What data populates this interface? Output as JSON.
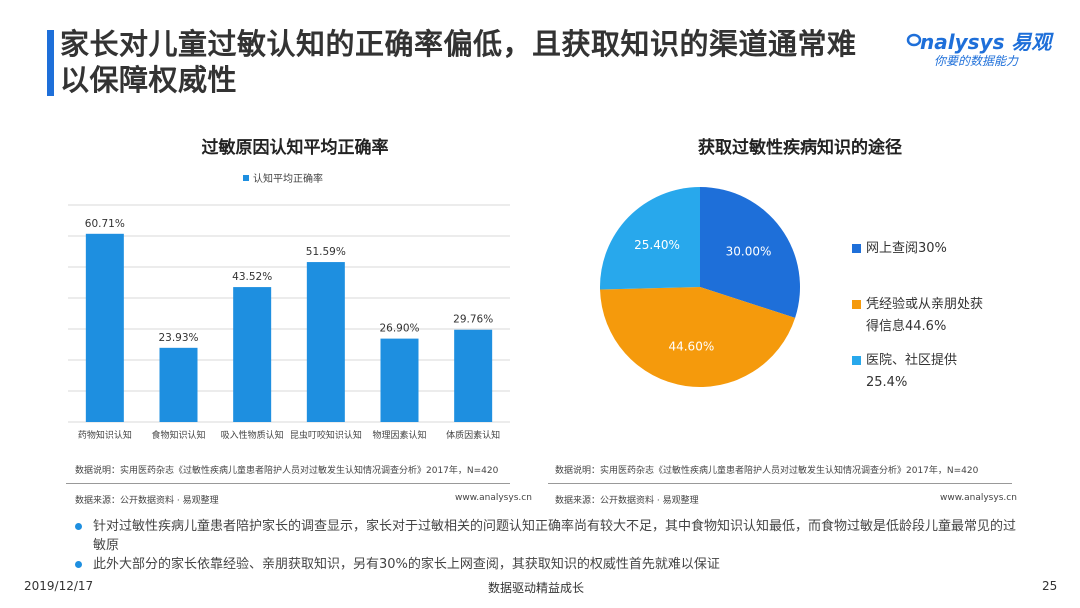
{
  "header": {
    "title_line1": "家长对儿童过敏认知的正确率偏低，且获取知识的渠道通常难",
    "title_line2": "以保障权威性",
    "logo_main": "nalysys 易观",
    "logo_sub": "你要的数据能力",
    "accent_color": "#1e6fd9"
  },
  "chart_data": [
    {
      "type": "bar",
      "title": "过敏原因认知平均正确率",
      "legend": "认知平均正确率",
      "categories": [
        "药物知识认知",
        "食物知识认知",
        "吸入性物质认知",
        "昆虫叮咬知识认知",
        "物理因素认知",
        "体质因素认知"
      ],
      "series": [
        {
          "name": "认知平均正确率",
          "values": [
            60.71,
            23.93,
            43.52,
            51.59,
            26.9,
            29.76
          ]
        }
      ],
      "value_labels": [
        "60.71%",
        "23.93%",
        "43.52%",
        "51.59%",
        "26.90%",
        "29.76%"
      ],
      "ylim": [
        0,
        70
      ],
      "grid": true,
      "bar_color": "#1e8fe0"
    },
    {
      "type": "pie",
      "title": "获取过敏性疾病知识的途径",
      "slices": [
        {
          "label": "网上查阅30%",
          "value": 30.0,
          "value_label": "30.00%",
          "color": "#1e6fd9"
        },
        {
          "label": "凭经验或从亲朋处获得信息44.6%",
          "value": 44.6,
          "value_label": "44.60%",
          "color": "#f59a0c"
        },
        {
          "label": "医院、社区提供25.4%",
          "value": 25.4,
          "value_label": "25.40%",
          "color": "#28a8ec"
        }
      ],
      "legend_lines": [
        [
          "网上查阅30%"
        ],
        [
          "凭经验或从亲朋处获",
          "得信息44.6%"
        ],
        [
          "医院、社区提供",
          "25.4%"
        ]
      ]
    }
  ],
  "notes": {
    "left_source_desc": "数据说明：实用医药杂志《过敏性疾病儿童患者陪护人员对过敏发生认知情况调查分析》2017年，N=420",
    "left_source": "数据来源：公开数据资料 · 易观整理",
    "left_url": "www.analysys.cn",
    "right_source_desc": "数据说明：实用医药杂志《过敏性疾病儿童患者陪护人员对过敏发生认知情况调查分析》2017年，N=420",
    "right_source": "数据来源：公开数据资料 · 易观整理",
    "right_url": "www.analysys.cn"
  },
  "bullets": [
    "针对过敏性疾病儿童患者陪护家长的调查显示，家长对于过敏相关的问题认知正确率尚有较大不足，其中食物知识认知最低，而食物过敏是低龄段儿童最常见的过敏原",
    "此外大部分的家长依靠经验、亲朋获取知识，另有30%的家长上网查阅，其获取知识的权威性首先就难以保证"
  ],
  "footer": {
    "date": "2019/12/17",
    "slogan": "数据驱动精益成长",
    "page": "25"
  }
}
